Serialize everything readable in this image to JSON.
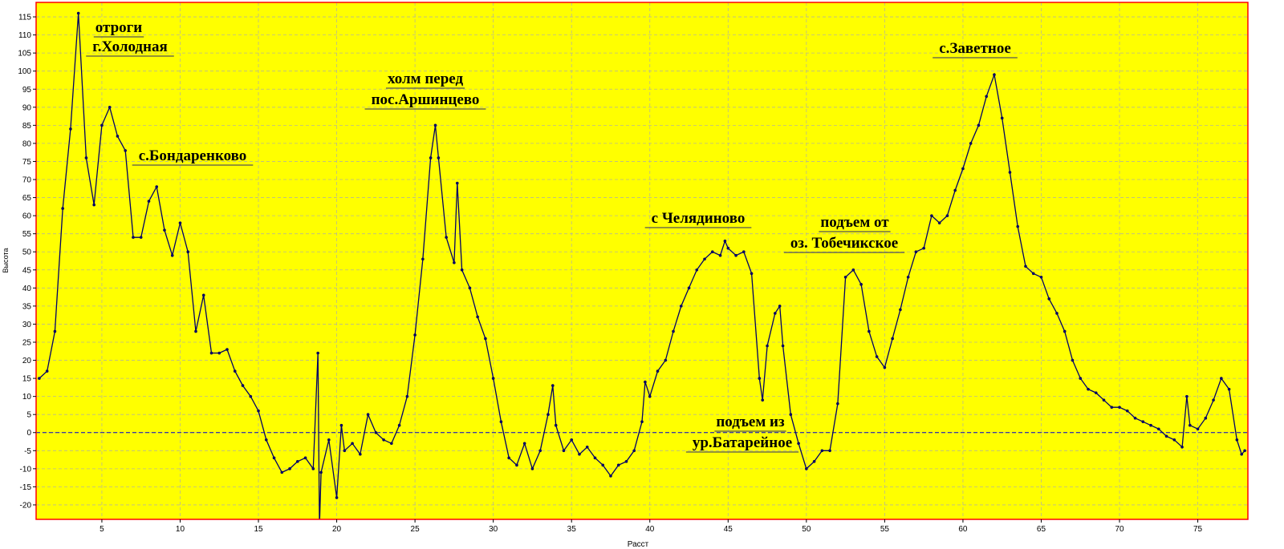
{
  "chart_data": {
    "type": "line",
    "x_label": "Расст",
    "y_label": "Высота",
    "x": [
      1,
      1.5,
      2,
      2.5,
      3,
      3.5,
      4,
      4.5,
      5,
      5.5,
      6,
      6.5,
      7,
      7.5,
      8,
      8.5,
      9,
      9.5,
      10,
      10.5,
      11,
      11.5,
      12,
      12.5,
      13,
      13.5,
      14,
      14.5,
      15,
      15.5,
      16,
      16.5,
      17,
      17.5,
      18,
      18.5,
      18.8,
      18.9,
      19,
      19.5,
      20,
      20.3,
      20.5,
      21,
      21.5,
      22,
      22.5,
      23,
      23.5,
      24,
      24.5,
      25,
      25.5,
      26,
      26.3,
      26.5,
      27,
      27.5,
      27.7,
      28,
      28.5,
      29,
      29.5,
      30,
      30.5,
      31,
      31.5,
      32,
      32.5,
      33,
      33.5,
      33.8,
      34,
      34.5,
      35,
      35.5,
      36,
      36.5,
      37,
      37.5,
      38,
      38.5,
      39,
      39.5,
      39.7,
      40,
      40.5,
      41,
      41.5,
      42,
      42.5,
      43,
      43.5,
      44,
      44.5,
      44.8,
      45,
      45.5,
      46,
      46.5,
      47,
      47.2,
      47.5,
      48,
      48.3,
      48.5,
      49,
      49.5,
      50,
      50.5,
      51,
      51.5,
      52,
      52.5,
      53,
      53.5,
      54,
      54.5,
      55,
      55.5,
      56,
      56.5,
      57,
      57.5,
      58,
      58.5,
      59,
      59.5,
      60,
      60.5,
      61,
      61.5,
      62,
      62.5,
      63,
      63.5,
      64,
      64.5,
      65,
      65.5,
      66,
      66.5,
      67,
      67.5,
      68,
      68.5,
      69,
      69.5,
      70,
      70.5,
      71,
      71.5,
      72,
      72.5,
      73,
      73.5,
      74,
      74.3,
      74.5,
      75,
      75.5,
      76,
      76.5,
      77,
      77.5,
      77.8,
      78
    ],
    "series": [
      {
        "color": "#000066",
        "values": [
          15,
          17,
          28,
          62,
          84,
          116,
          76,
          63,
          85,
          90,
          82,
          78,
          54,
          54,
          64,
          68,
          56,
          49,
          58,
          50,
          28,
          38,
          22,
          22,
          23,
          17,
          13,
          10,
          6,
          -2,
          -7,
          -11,
          -10,
          -8,
          -7,
          -10,
          22,
          -26,
          -11,
          -2,
          -18,
          2,
          -5,
          -3,
          -6,
          5,
          0,
          -2,
          -3,
          2,
          10,
          27,
          48,
          76,
          85,
          76,
          54,
          47,
          69,
          45,
          40,
          32,
          26,
          15,
          3,
          -7,
          -9,
          -3,
          -10,
          -5,
          5,
          13,
          2,
          -5,
          -2,
          -6,
          -4,
          -7,
          -9,
          -12,
          -9,
          -8,
          -5,
          3,
          14,
          10,
          17,
          20,
          28,
          35,
          40,
          45,
          48,
          50,
          49,
          53,
          51,
          49,
          50,
          44,
          15,
          9,
          24,
          33,
          35,
          24,
          5,
          -3,
          -10,
          -8,
          -5,
          -5,
          8,
          43,
          45,
          41,
          28,
          21,
          18,
          26,
          34,
          43,
          50,
          51,
          60,
          58,
          60,
          67,
          73,
          80,
          85,
          93,
          99,
          87,
          72,
          57,
          46,
          44,
          43,
          37,
          33,
          28,
          20,
          15,
          12,
          11,
          9,
          7,
          7,
          6,
          4,
          3,
          2,
          1,
          -1,
          -2,
          -4,
          10,
          2,
          1,
          4,
          9,
          15,
          12,
          -2,
          -6,
          -5
        ]
      }
    ],
    "xlim": [
      0.8,
      78.2
    ],
    "ylim": [
      -24,
      119
    ],
    "xticks": [
      5,
      10,
      15,
      20,
      25,
      30,
      35,
      40,
      45,
      50,
      55,
      60,
      65,
      70,
      75
    ],
    "yticks": [
      -20,
      -15,
      -10,
      -5,
      0,
      5,
      10,
      15,
      20,
      25,
      30,
      35,
      40,
      45,
      50,
      55,
      60,
      65,
      70,
      75,
      80,
      85,
      90,
      95,
      100,
      105,
      110,
      115
    ],
    "grid": true,
    "zero_line": true,
    "annotations": [
      {
        "lines": [
          "отроги",
          "г.Холодная"
        ]
      },
      {
        "lines": [
          "с.Бондаренково"
        ]
      },
      {
        "lines": [
          "холм перед",
          "пос.Аршинцево"
        ]
      },
      {
        "lines": [
          "с Челядиново"
        ]
      },
      {
        "lines": [
          "подъем от",
          "оз. Тобечикское"
        ]
      },
      {
        "lines": [
          "с.Заветное"
        ]
      },
      {
        "lines": [
          "подъем из",
          "ур.Батарейное"
        ]
      }
    ]
  }
}
